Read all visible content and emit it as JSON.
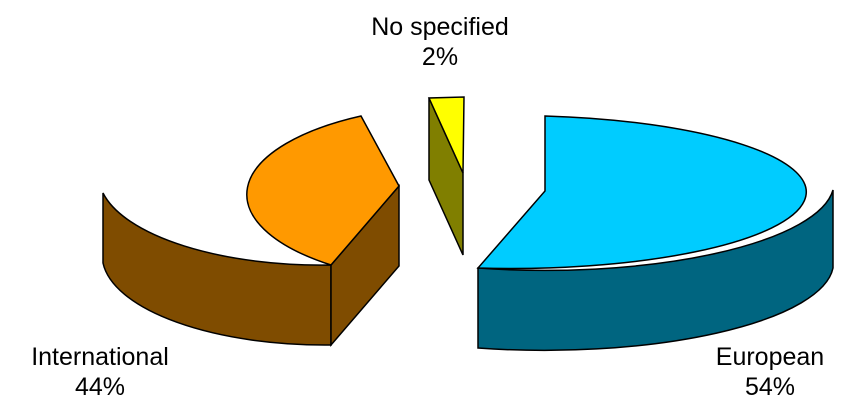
{
  "chart_data": {
    "type": "pie",
    "style": "3d-exploded",
    "title": "",
    "slices": [
      {
        "label": "European",
        "value": 54,
        "value_label": "54%",
        "color": "#00ccff",
        "side_color": "#006580"
      },
      {
        "label": "International",
        "value": 44,
        "value_label": "44%",
        "color": "#ff9900",
        "side_color": "#7f4c00"
      },
      {
        "label": "No specified",
        "value": 2,
        "value_label": "2%",
        "color": "#ffff00",
        "side_color": "#807f00"
      }
    ],
    "legend": "none"
  }
}
